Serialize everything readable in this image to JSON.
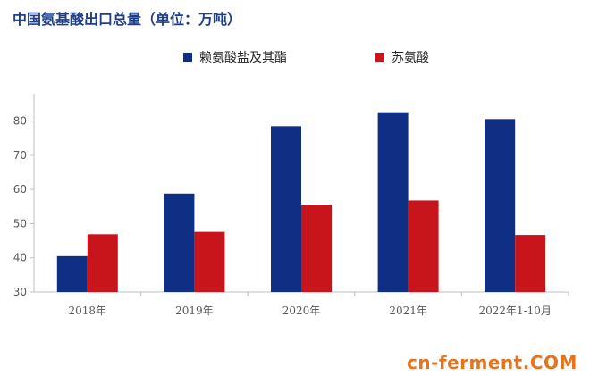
{
  "chart_data": {
    "type": "bar",
    "title": "中国氨基酸出口总量（单位：万吨）",
    "categories": [
      "2018年",
      "2019年",
      "2020年",
      "2021年",
      "2022年1-10月"
    ],
    "series": [
      {
        "name": "赖氨酸盐及其酯",
        "color": "#0e2f84",
        "values": [
          40.5,
          58.8,
          78.5,
          82.6,
          80.6
        ]
      },
      {
        "name": "苏氨酸",
        "color": "#c8141b",
        "values": [
          46.9,
          47.6,
          55.6,
          56.8,
          46.7
        ]
      }
    ],
    "yticks": [
      30,
      40,
      50,
      60,
      70,
      80
    ],
    "ylim": [
      30,
      88
    ],
    "grid": false,
    "legend": "top"
  },
  "watermark": "cn-ferment.COM"
}
